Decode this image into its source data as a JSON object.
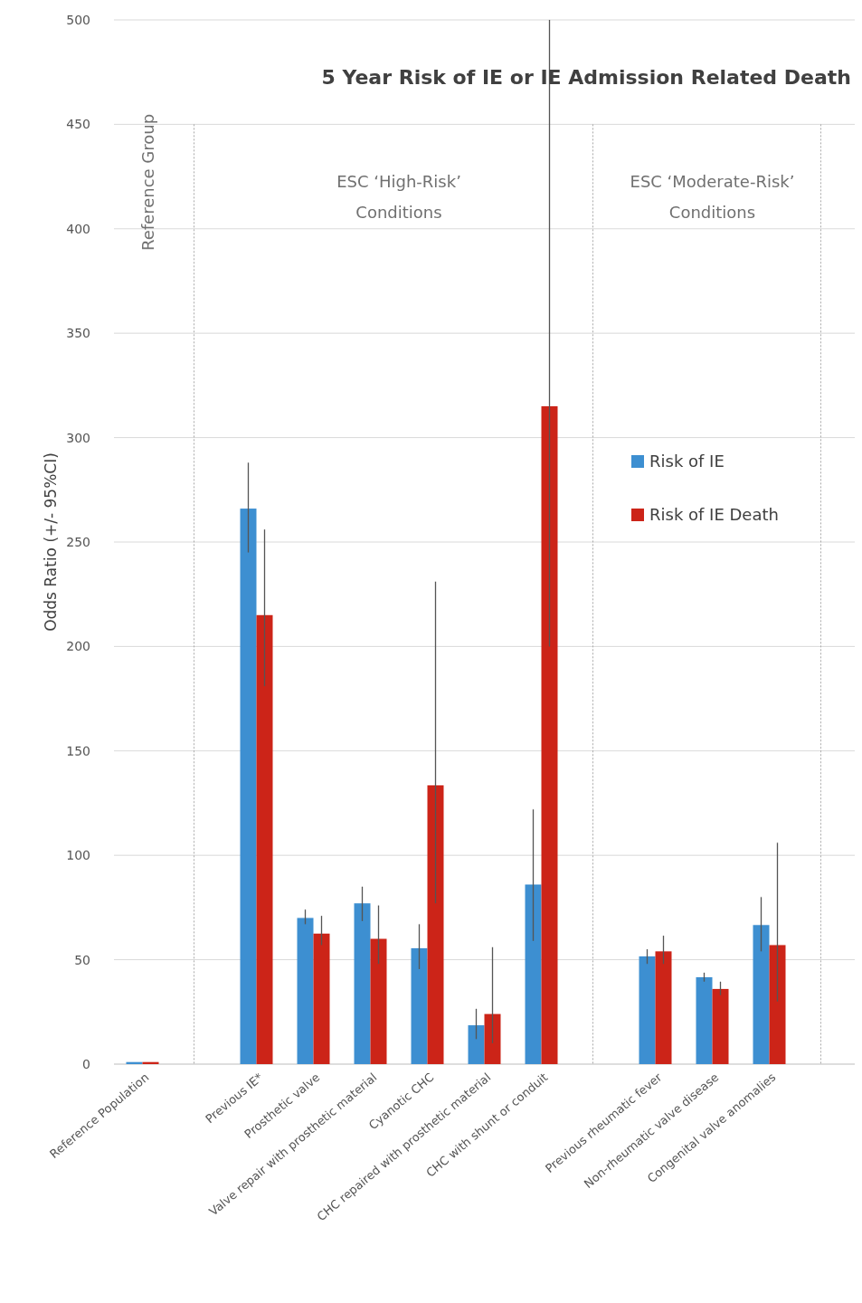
{
  "chart_data": {
    "type": "bar",
    "title": "5 Year Risk of IE or IE Admission Related Death",
    "ylabel": "Odds Ratio (+/- 95%CI)",
    "categories": [
      "Reference Population",
      null,
      "Previous IE*",
      "Prosthetic valve",
      "Valve repair with prosthetic material",
      "Cyanotic CHC",
      "CHC repaired with prosthetic material",
      "CHC with shunt or conduit",
      null,
      "Previous rheumatic fever",
      "Non-rheumatic valve disease",
      "Congenital valve anomalies",
      null
    ],
    "series": [
      {
        "name": "Risk of IE",
        "color": "#3d8fd1",
        "values": [
          1,
          null,
          266,
          70,
          77,
          55.5,
          18.6,
          86,
          null,
          51.6,
          41.6,
          66.6,
          null
        ],
        "errors": [
          null,
          null,
          [
            245,
            288
          ],
          [
            67,
            74
          ],
          [
            68.5,
            85
          ],
          [
            45.5,
            67
          ],
          [
            12,
            26.5
          ],
          [
            59,
            122
          ],
          null,
          [
            48,
            55
          ],
          [
            39.5,
            43.8
          ],
          [
            54,
            80
          ],
          null
        ]
      },
      {
        "name": "Risk of IE Death",
        "color": "#cc2418",
        "values": [
          1,
          null,
          215,
          62.5,
          60,
          133.5,
          24,
          315,
          null,
          54,
          36,
          57,
          null
        ],
        "errors": [
          null,
          null,
          [
            181,
            256
          ],
          [
            57,
            71
          ],
          [
            48,
            76
          ],
          [
            77,
            231
          ],
          [
            10,
            56
          ],
          [
            200,
            500
          ],
          null,
          [
            48,
            61.5
          ],
          [
            33,
            39.5
          ],
          [
            30,
            106
          ],
          null
        ]
      }
    ],
    "ylim": [
      0,
      500
    ],
    "yticks": [
      0,
      50,
      100,
      150,
      200,
      250,
      300,
      350,
      400,
      450,
      500
    ],
    "grid": "y",
    "legend": "top right",
    "annotations": [
      "Reference Group",
      "ESC ‘High-Risk’\nConditions",
      "ESC ‘Moderate-Risk’\nConditions"
    ]
  }
}
